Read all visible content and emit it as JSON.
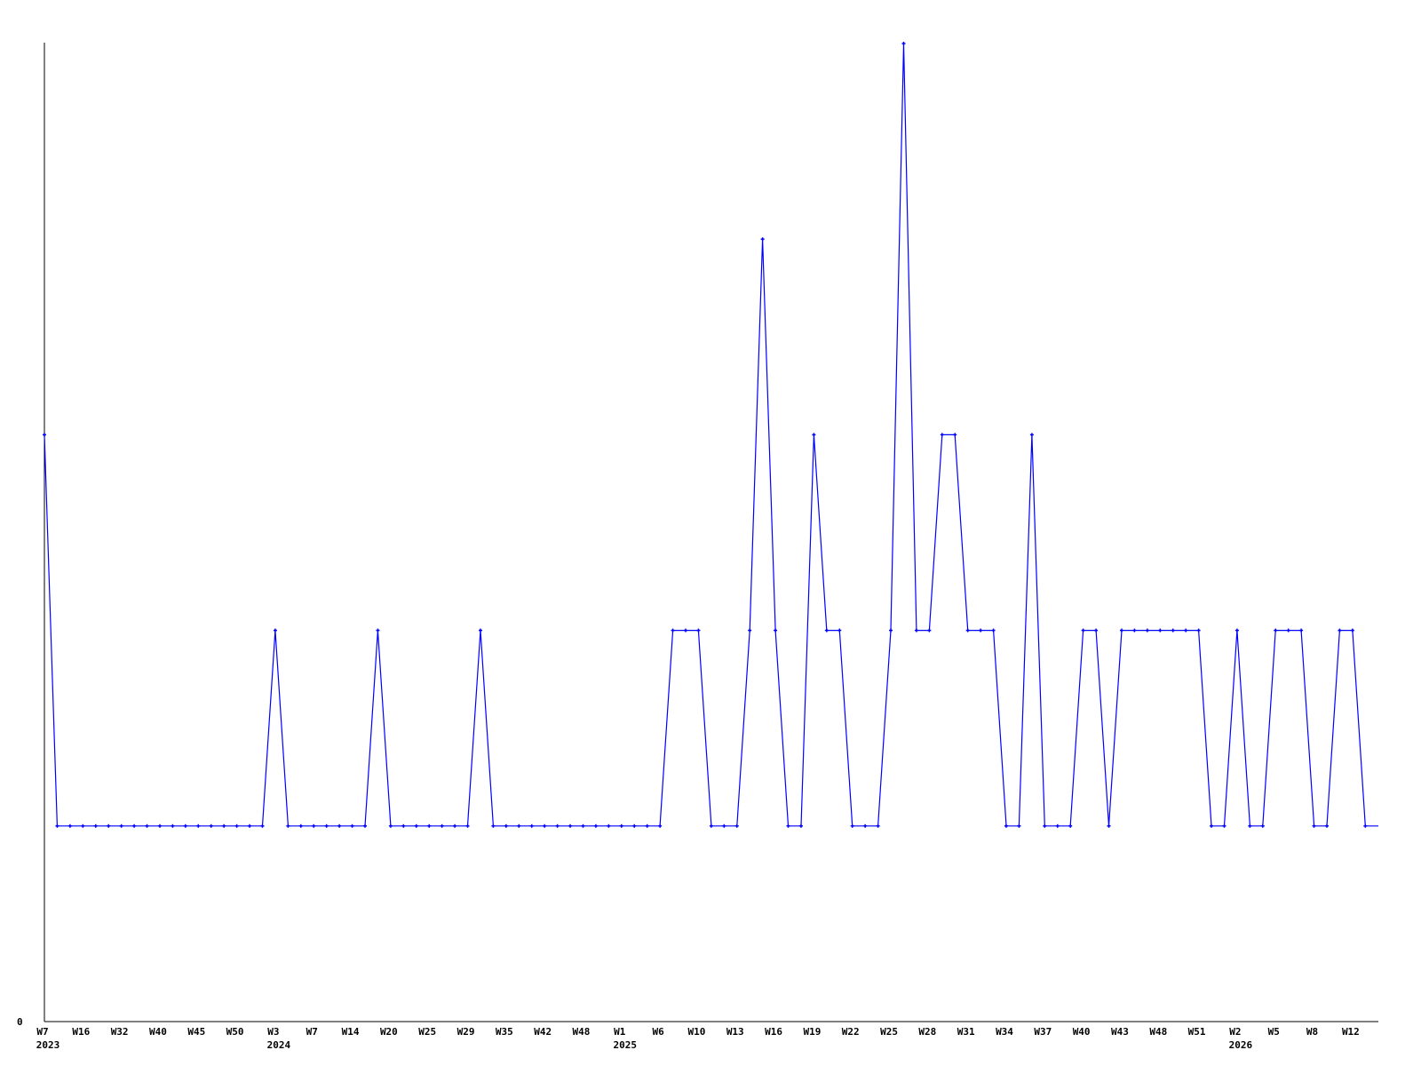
{
  "chart_data": {
    "type": "line",
    "title": "",
    "xlabel": "",
    "ylabel": "",
    "ylim": [
      0,
      5
    ],
    "y_tick_labels": [
      "0"
    ],
    "grid": false,
    "legend": "none",
    "line_color": "#0000ff",
    "axis_color": "#000000",
    "x_tick_labels": [
      "W7",
      "W16",
      "W32",
      "W40",
      "W45",
      "W50",
      "W3",
      "W7",
      "W14",
      "W20",
      "W25",
      "W29",
      "W35",
      "W42",
      "W48",
      "W1",
      "W6",
      "W10",
      "W13",
      "W16",
      "W19",
      "W22",
      "W25",
      "W28",
      "W31",
      "W34",
      "W37",
      "W40",
      "W43",
      "W48",
      "W51",
      "W2",
      "W5",
      "W8",
      "W12"
    ],
    "year_labels": [
      {
        "label": "2023",
        "under_tick": "W7"
      },
      {
        "label": "2024",
        "under_tick": "W3"
      },
      {
        "label": "2025",
        "under_tick": "W1"
      },
      {
        "label": "2026",
        "under_tick": "W2"
      }
    ],
    "values": [
      3,
      1,
      1,
      1,
      1,
      1,
      1,
      1,
      1,
      1,
      1,
      1,
      1,
      1,
      1,
      1,
      1,
      1,
      2,
      1,
      1,
      1,
      1,
      1,
      1,
      1,
      2,
      1,
      1,
      1,
      1,
      1,
      1,
      1,
      2,
      1,
      1,
      1,
      1,
      1,
      1,
      1,
      1,
      1,
      1,
      1,
      1,
      1,
      1,
      2,
      2,
      2,
      1,
      1,
      1,
      2,
      4,
      2,
      1,
      1,
      3,
      2,
      2,
      1,
      1,
      1,
      2,
      5,
      2,
      2,
      3,
      3,
      2,
      2,
      2,
      1,
      1,
      3,
      1,
      1,
      1,
      2,
      2,
      1,
      2,
      2,
      2,
      2,
      2,
      2,
      2,
      1,
      1,
      2,
      1,
      1,
      2,
      2,
      2,
      1,
      1,
      2,
      2,
      1
    ]
  }
}
